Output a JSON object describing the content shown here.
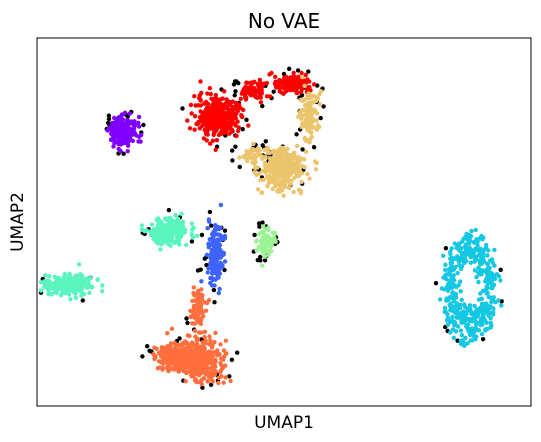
{
  "chart_data": {
    "type": "scatter",
    "title": "No VAE",
    "xlabel": "UMAP1",
    "ylabel": "UMAP2",
    "xticks": "hidden",
    "yticks": "hidden",
    "grid": false,
    "legend": "none",
    "xlim": [
      0,
      100
    ],
    "ylim": [
      0,
      100
    ],
    "clusters": [
      {
        "color": "#ff0000",
        "center": [
          36.5,
          78.5
        ],
        "spread": [
          4.0,
          5.0
        ],
        "count": 340,
        "shape": "blob"
      },
      {
        "color": "#ff0000",
        "center": [
          51.5,
          87.5
        ],
        "spread": [
          3.5,
          2.2
        ],
        "count": 130,
        "shape": "blob"
      },
      {
        "color": "#ff0000",
        "center": [
          44.0,
          85.5
        ],
        "spread": [
          2.5,
          2.5
        ],
        "count": 70,
        "shape": "blob"
      },
      {
        "color": "#ecc46c",
        "center": [
          49.5,
          64.5
        ],
        "spread": [
          3.8,
          5.0
        ],
        "count": 320,
        "shape": "blob"
      },
      {
        "color": "#ecc46c",
        "center": [
          55.0,
          79.0
        ],
        "spread": [
          1.8,
          6.0
        ],
        "count": 110,
        "shape": "blob"
      },
      {
        "color": "#ecc46c",
        "center": [
          43.5,
          68.5
        ],
        "spread": [
          2.5,
          2.5
        ],
        "count": 40,
        "shape": "blob"
      },
      {
        "color": "#8000ff",
        "center": [
          17.5,
          74.5
        ],
        "spread": [
          2.3,
          3.6
        ],
        "count": 190,
        "shape": "blob"
      },
      {
        "color": "#5af5bf",
        "center": [
          26.5,
          47.5
        ],
        "spread": [
          3.6,
          3.4
        ],
        "count": 250,
        "shape": "blob"
      },
      {
        "color": "#5af5bf",
        "center": [
          6.5,
          33.0
        ],
        "spread": [
          4.2,
          2.6
        ],
        "count": 220,
        "shape": "blob"
      },
      {
        "color": "#9bf393",
        "center": [
          46.5,
          44.5
        ],
        "spread": [
          1.5,
          3.4
        ],
        "count": 70,
        "shape": "blob"
      },
      {
        "color": "#3d63fb",
        "center": [
          36.0,
          41.0
        ],
        "spread": [
          1.6,
          7.5
        ],
        "count": 150,
        "shape": "blob"
      },
      {
        "color": "#ff6e3d",
        "center": [
          28.5,
          13.5
        ],
        "spread": [
          3.8,
          3.6
        ],
        "count": 240,
        "shape": "blob"
      },
      {
        "color": "#ff6e3d",
        "center": [
          33.5,
          12.5
        ],
        "spread": [
          3.8,
          5.0
        ],
        "count": 290,
        "shape": "blob"
      },
      {
        "color": "#ff6e3d",
        "center": [
          32.5,
          26.5
        ],
        "spread": [
          1.4,
          5.5
        ],
        "count": 70,
        "shape": "blob"
      },
      {
        "color": "#14c7e2",
        "center": [
          87.5,
          32.0
        ],
        "spread": [
          5.0,
          14.5
        ],
        "count": 420,
        "shape": "ring"
      }
    ],
    "unassigned": {
      "color": "#000000",
      "count": 150,
      "distribution": "outlines cluster edges"
    }
  }
}
